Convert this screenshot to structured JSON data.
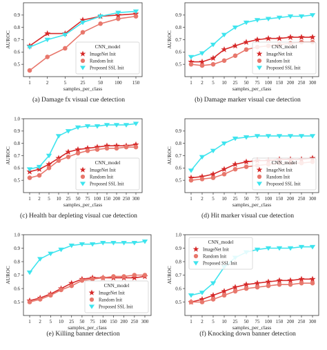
{
  "series_styles": [
    {
      "key": "imagenet",
      "color": "#d62a2a",
      "marker": "star"
    },
    {
      "key": "random",
      "color": "#e8776c",
      "marker": "circle"
    },
    {
      "key": "ssl",
      "color": "#3ee4ee",
      "marker": "triangle-down"
    }
  ],
  "chart_data": [
    {
      "type": "line",
      "caption": "(a) Damage fx visual cue detection",
      "xlabel": "samples_per_class",
      "ylabel": "AUROC",
      "categories": [
        "1",
        "2",
        "5",
        "25",
        "50",
        "100",
        "150"
      ],
      "ylim": [
        0.4,
        1.0
      ],
      "yticks": [
        "0.5",
        "0.6",
        "0.7",
        "0.8",
        "0.9"
      ],
      "legend_title": "CNN_model",
      "legend_position": "lower-right",
      "series": [
        {
          "name": "ImageNet Init",
          "values": [
            0.65,
            0.75,
            0.75,
            0.86,
            0.89,
            0.9,
            0.91
          ]
        },
        {
          "name": "Random Init",
          "values": [
            0.45,
            0.56,
            0.63,
            0.76,
            0.83,
            0.87,
            0.89
          ]
        },
        {
          "name": "Proposed SSL Init",
          "values": [
            0.64,
            0.7,
            0.74,
            0.84,
            0.89,
            0.92,
            0.93
          ]
        }
      ]
    },
    {
      "type": "line",
      "caption": "(b) Damage marker visual cue detection",
      "xlabel": "samples_per_class",
      "ylabel": "AUROC",
      "categories": [
        "1",
        "2",
        "5",
        "10",
        "25",
        "50",
        "75",
        "100",
        "150",
        "200",
        "250",
        "300"
      ],
      "ylim": [
        0.4,
        1.0
      ],
      "yticks": [
        "0.5",
        "0.6",
        "0.7",
        "0.8",
        "0.9"
      ],
      "legend_title": "CNN_model",
      "legend_position": "lower-right",
      "series": [
        {
          "name": "ImageNet Init",
          "values": [
            0.52,
            0.52,
            0.55,
            0.62,
            0.65,
            0.68,
            0.7,
            0.71,
            0.71,
            0.72,
            0.72,
            0.72
          ]
        },
        {
          "name": "Random Init",
          "values": [
            0.5,
            0.49,
            0.5,
            0.53,
            0.57,
            0.62,
            0.64,
            0.65,
            0.66,
            0.67,
            0.68,
            0.68
          ]
        },
        {
          "name": "Proposed SSL Init",
          "values": [
            0.56,
            0.59,
            0.66,
            0.74,
            0.8,
            0.84,
            0.86,
            0.87,
            0.88,
            0.89,
            0.89,
            0.9
          ]
        }
      ]
    },
    {
      "type": "line",
      "caption": "(c) Health bar depleting visual cue detection",
      "xlabel": "samples_per_class",
      "ylabel": "AUROC",
      "categories": [
        "1",
        "2",
        "5",
        "10",
        "25",
        "50",
        "75",
        "100",
        "150",
        "200",
        "250",
        "300"
      ],
      "ylim": [
        0.4,
        1.0
      ],
      "yticks": [
        "0.5",
        "0.6",
        "0.7",
        "0.8",
        "0.9",
        "1.0"
      ],
      "legend_title": "CNN_model",
      "legend_position": "lower-right",
      "series": [
        {
          "name": "ImageNet Init",
          "values": [
            0.57,
            0.59,
            0.63,
            0.68,
            0.73,
            0.75,
            0.76,
            0.77,
            0.78,
            0.78,
            0.78,
            0.79
          ]
        },
        {
          "name": "Random Init",
          "values": [
            0.52,
            0.54,
            0.6,
            0.66,
            0.69,
            0.72,
            0.74,
            0.75,
            0.76,
            0.76,
            0.77,
            0.77
          ]
        },
        {
          "name": "Proposed SSL Init",
          "values": [
            0.59,
            0.61,
            0.7,
            0.86,
            0.9,
            0.93,
            0.94,
            0.94,
            0.95,
            0.95,
            0.95,
            0.96
          ]
        }
      ]
    },
    {
      "type": "line",
      "caption": "(d) Hit marker visual cue detection",
      "xlabel": "samples_per_class",
      "ylabel": "AUROC",
      "categories": [
        "1",
        "2",
        "5",
        "10",
        "25",
        "50",
        "75",
        "100",
        "150",
        "200",
        "250",
        "300"
      ],
      "ylim": [
        0.4,
        1.0
      ],
      "yticks": [
        "0.5",
        "0.6",
        "0.7",
        "0.8",
        "0.9"
      ],
      "legend_title": "CNN_model",
      "legend_position": "lower-right",
      "series": [
        {
          "name": "ImageNet Init",
          "values": [
            0.52,
            0.53,
            0.55,
            0.59,
            0.63,
            0.65,
            0.66,
            0.66,
            0.67,
            0.67,
            0.67,
            0.68
          ]
        },
        {
          "name": "Random Init",
          "values": [
            0.5,
            0.51,
            0.52,
            0.55,
            0.59,
            0.61,
            0.62,
            0.63,
            0.64,
            0.64,
            0.64,
            0.65
          ]
        },
        {
          "name": "Proposed SSL Init",
          "values": [
            0.58,
            0.69,
            0.74,
            0.8,
            0.84,
            0.85,
            0.86,
            0.86,
            0.86,
            0.86,
            0.86,
            0.86
          ]
        }
      ]
    },
    {
      "type": "line",
      "caption": "(e) Killing banner detection",
      "xlabel": "samples_per_class",
      "ylabel": "AUROC",
      "categories": [
        "1",
        "2",
        "5",
        "10",
        "25",
        "50",
        "75",
        "100",
        "150",
        "200",
        "250",
        "300"
      ],
      "ylim": [
        0.4,
        1.0
      ],
      "yticks": [
        "0.5",
        "0.6",
        "0.7",
        "0.8",
        "0.9",
        "1.0"
      ],
      "legend_title": "CNN_model",
      "legend_position": "lower-right",
      "series": [
        {
          "name": "ImageNet Init",
          "values": [
            0.51,
            0.53,
            0.56,
            0.6,
            0.64,
            0.67,
            0.68,
            0.68,
            0.68,
            0.68,
            0.68,
            0.69
          ]
        },
        {
          "name": "Random Init",
          "values": [
            0.5,
            0.52,
            0.55,
            0.59,
            0.62,
            0.66,
            0.67,
            0.68,
            0.69,
            0.69,
            0.7,
            0.7
          ]
        },
        {
          "name": "Proposed SSL Init",
          "values": [
            0.72,
            0.82,
            0.86,
            0.89,
            0.92,
            0.93,
            0.93,
            0.94,
            0.94,
            0.94,
            0.94,
            0.95
          ]
        }
      ]
    },
    {
      "type": "line",
      "caption": "(f) Knocking down banner detection",
      "xlabel": "samples_per_class",
      "ylabel": "AUROC",
      "categories": [
        "1",
        "2",
        "5",
        "10",
        "25",
        "50",
        "75",
        "100",
        "150",
        "200",
        "250",
        "300"
      ],
      "ylim": [
        0.4,
        1.0
      ],
      "yticks": [
        "0.5",
        "0.6",
        "0.7",
        "0.8",
        "0.9",
        "1.0"
      ],
      "legend_title": "CNN_model",
      "legend_position": "upper-left",
      "series": [
        {
          "name": "ImageNet Init",
          "values": [
            0.5,
            0.52,
            0.55,
            0.58,
            0.61,
            0.63,
            0.64,
            0.65,
            0.66,
            0.66,
            0.67,
            0.67
          ]
        },
        {
          "name": "Random Init",
          "values": [
            0.5,
            0.5,
            0.52,
            0.55,
            0.58,
            0.6,
            0.61,
            0.62,
            0.63,
            0.63,
            0.64,
            0.64
          ]
        },
        {
          "name": "Proposed SSL Init",
          "values": [
            0.55,
            0.57,
            0.64,
            0.76,
            0.83,
            0.87,
            0.89,
            0.9,
            0.9,
            0.9,
            0.91,
            0.91
          ]
        }
      ]
    }
  ]
}
